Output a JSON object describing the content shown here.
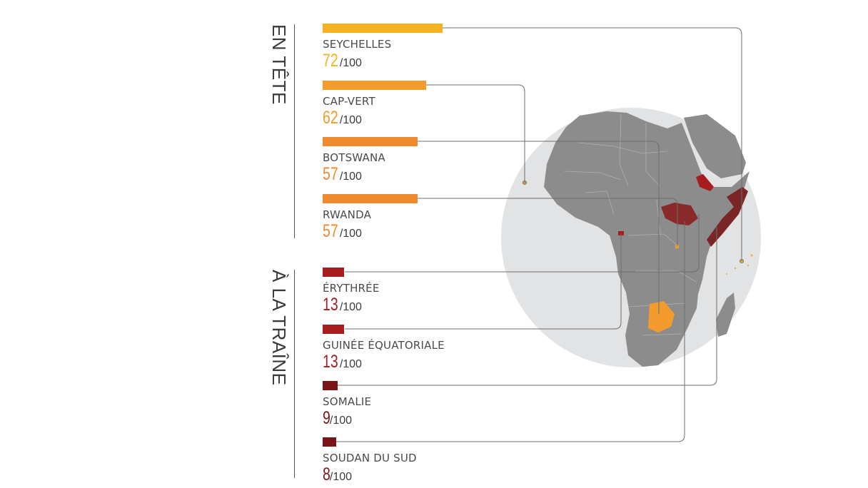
{
  "sections": {
    "top_label": "EN TÊTE",
    "bottom_label": "À LA TRAÎNE"
  },
  "colors": {
    "globe": "#e2e3e5",
    "land": "#8c8c8d",
    "border": "#b0b0b0",
    "leader": "#6d6d6d"
  },
  "chart_data": {
    "type": "bar",
    "max": 100,
    "suffix": "/100",
    "groups": [
      {
        "label": "EN TÊTE",
        "items": [
          {
            "name": "SEYCHELLES",
            "value": 72,
            "color": "#f4b223"
          },
          {
            "name": "CAP-VERT",
            "value": 62,
            "color": "#f39b2d"
          },
          {
            "name": "BOTSWANA",
            "value": 57,
            "color": "#ef8a2e"
          },
          {
            "name": "RWANDA",
            "value": 57,
            "color": "#ef8a2e"
          }
        ]
      },
      {
        "label": "À LA TRAÎNE",
        "items": [
          {
            "name": "ÉRYTHRÉE",
            "value": 13,
            "color": "#a81c1f"
          },
          {
            "name": "GUINÉE ÉQUATORIALE",
            "value": 13,
            "color": "#a81c1f"
          },
          {
            "name": "SOMALIE",
            "value": 9,
            "color": "#7a1416"
          },
          {
            "name": "SOUDAN DU SUD",
            "value": 8,
            "color": "#7a1416"
          }
        ]
      }
    ]
  }
}
